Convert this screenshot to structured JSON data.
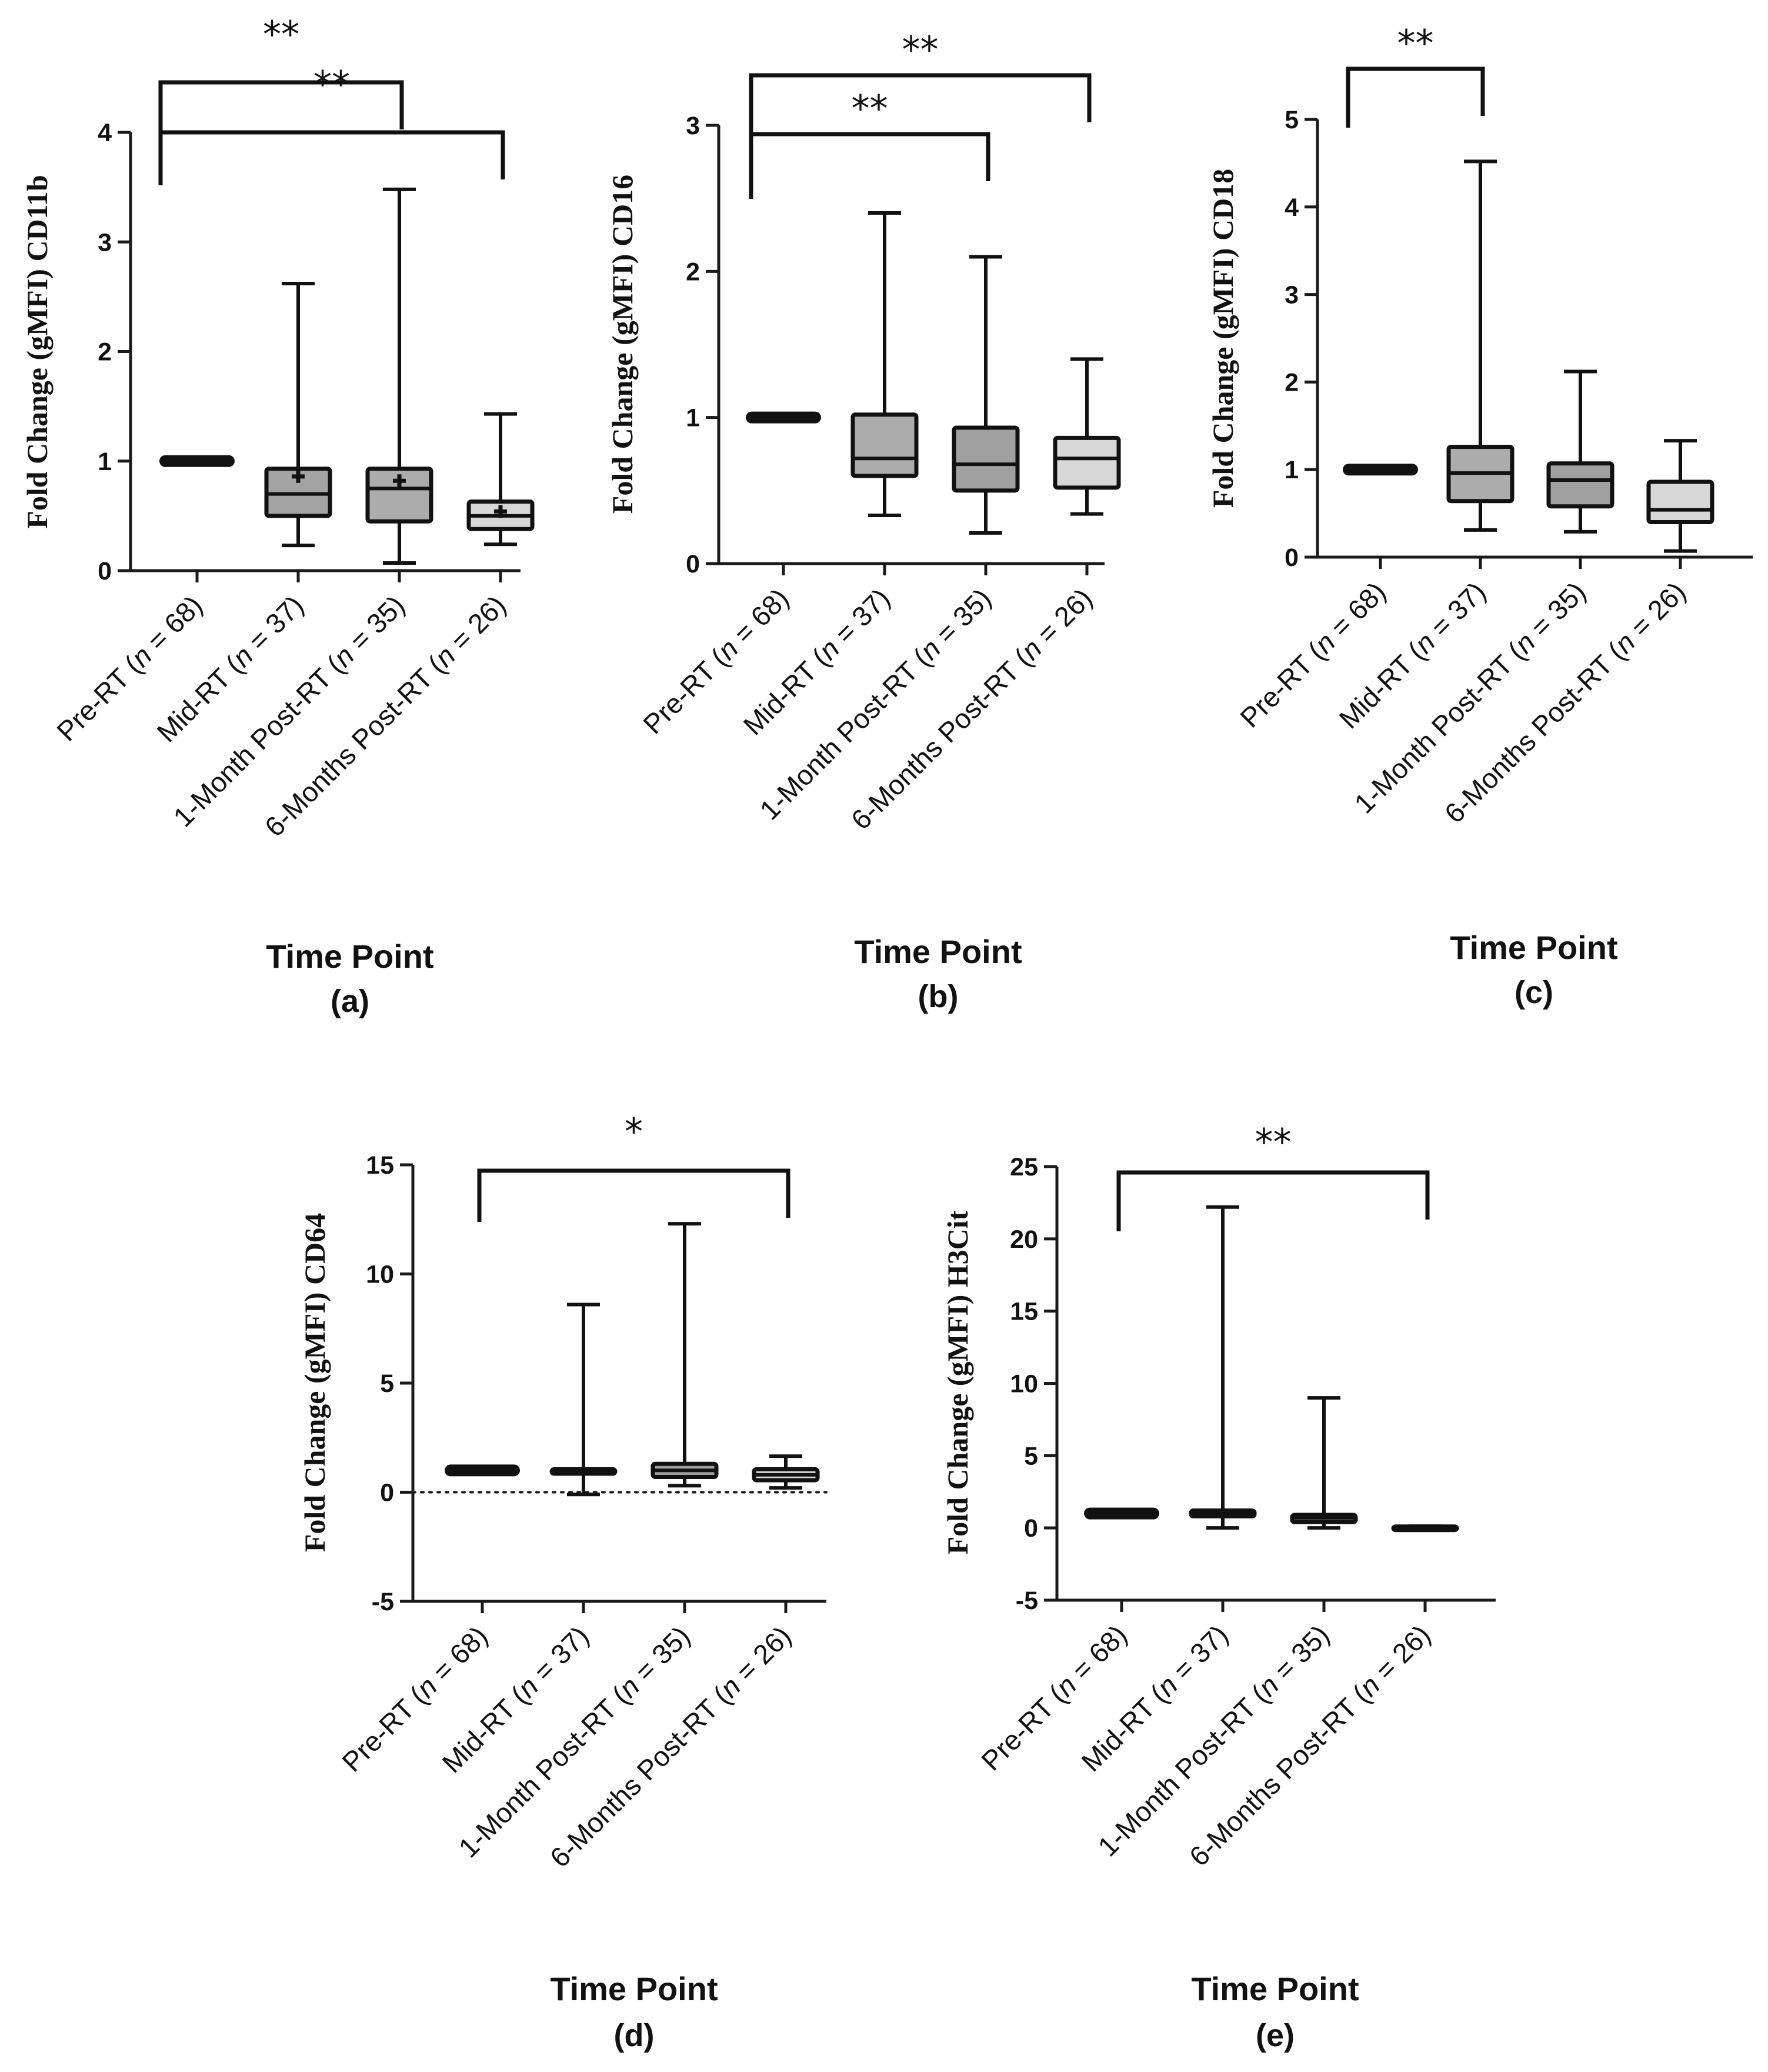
{
  "chart_data": [
    {
      "panel": "(a)",
      "type": "box",
      "ylabel": "Fold Change (gMFI) CD11b",
      "xlabel": "Time Point",
      "ylim": [
        0,
        4
      ],
      "yticks": [
        0,
        1,
        2,
        3,
        4
      ],
      "categories": [
        "Pre-RT (n = 68)",
        "Mid-RT (n = 37)",
        "1-Month Post-RT (n = 35)",
        "6-Months Post-RT (n = 26)"
      ],
      "series": [
        {
          "name": "Pre-RT",
          "min": 1.0,
          "q1": 1.0,
          "median": 1.0,
          "q3": 1.0,
          "max": 1.0,
          "mean": null,
          "fill": "#9a9a9a"
        },
        {
          "name": "Mid-RT",
          "min": 0.23,
          "q1": 0.5,
          "median": 0.7,
          "q3": 0.93,
          "max": 2.62,
          "mean": 0.86,
          "fill": "#a4a4a4"
        },
        {
          "name": "1-Month Post-RT",
          "min": 0.07,
          "q1": 0.45,
          "median": 0.75,
          "q3": 0.93,
          "max": 3.48,
          "mean": 0.82,
          "fill": "#acacac"
        },
        {
          "name": "6-Months Post-RT",
          "min": 0.24,
          "q1": 0.38,
          "median": 0.5,
          "q3": 0.63,
          "max": 1.43,
          "mean": 0.54,
          "fill": "#d7d7d7"
        }
      ],
      "significance": [
        {
          "from": 0,
          "to": 2,
          "label": "**",
          "level": 0
        },
        {
          "from": 0,
          "to": 3,
          "label": "**",
          "level": 1
        }
      ],
      "ref_line": null
    },
    {
      "panel": "(b)",
      "type": "box",
      "ylabel": "Fold Change (gMFI) CD16",
      "xlabel": "Time Point",
      "ylim": [
        0,
        3
      ],
      "yticks": [
        0,
        1,
        2,
        3
      ],
      "categories": [
        "Pre-RT (n = 68)",
        "Mid-RT (n = 37)",
        "1-Month Post-RT (n = 35)",
        "6-Months Post-RT (n = 26)"
      ],
      "series": [
        {
          "name": "Pre-RT",
          "min": 1.0,
          "q1": 1.0,
          "median": 1.0,
          "q3": 1.0,
          "max": 1.0,
          "mean": null,
          "fill": "#9a9a9a"
        },
        {
          "name": "Mid-RT",
          "min": 0.33,
          "q1": 0.6,
          "median": 0.72,
          "q3": 1.02,
          "max": 2.4,
          "mean": null,
          "fill": "#acacac"
        },
        {
          "name": "1-Month Post-RT",
          "min": 0.21,
          "q1": 0.5,
          "median": 0.68,
          "q3": 0.93,
          "max": 2.1,
          "mean": null,
          "fill": "#a0a0a0"
        },
        {
          "name": "6-Months Post-RT",
          "min": 0.34,
          "q1": 0.52,
          "median": 0.72,
          "q3": 0.86,
          "max": 1.4,
          "mean": null,
          "fill": "#d7d7d7"
        }
      ],
      "significance": [
        {
          "from": 0,
          "to": 2,
          "label": "**",
          "level": 0
        },
        {
          "from": 0,
          "to": 3,
          "label": "**",
          "level": 1
        }
      ],
      "ref_line": null
    },
    {
      "panel": "(c)",
      "type": "box",
      "ylabel": "Fold Change (gMFI) CD18",
      "xlabel": "Time Point",
      "ylim": [
        0,
        5
      ],
      "yticks": [
        0,
        1,
        2,
        3,
        4,
        5
      ],
      "categories": [
        "Pre-RT (n = 68)",
        "Mid-RT (n = 37)",
        "1-Month Post-RT (n = 35)",
        "6-Months Post-RT (n = 26)"
      ],
      "series": [
        {
          "name": "Pre-RT",
          "min": 1.0,
          "q1": 1.0,
          "median": 1.0,
          "q3": 1.0,
          "max": 1.0,
          "mean": null,
          "fill": "#9a9a9a"
        },
        {
          "name": "Mid-RT",
          "min": 0.31,
          "q1": 0.64,
          "median": 0.96,
          "q3": 1.26,
          "max": 4.52,
          "mean": null,
          "fill": "#acacac"
        },
        {
          "name": "1-Month Post-RT",
          "min": 0.29,
          "q1": 0.58,
          "median": 0.88,
          "q3": 1.07,
          "max": 2.12,
          "mean": null,
          "fill": "#a0a0a0"
        },
        {
          "name": "6-Months Post-RT",
          "min": 0.07,
          "q1": 0.4,
          "median": 0.54,
          "q3": 0.86,
          "max": 1.33,
          "mean": null,
          "fill": "#d7d7d7"
        }
      ],
      "significance": [
        {
          "from": 0,
          "to": 1,
          "label": "**",
          "level": 0
        }
      ],
      "ref_line": null
    },
    {
      "panel": "(d)",
      "type": "box",
      "ylabel": "Fold Change (gMFI) CD64",
      "xlabel": "Time Point",
      "ylim": [
        -5,
        15
      ],
      "yticks": [
        -5,
        0,
        5,
        10,
        15
      ],
      "categories": [
        "Pre-RT (n = 68)",
        "Mid-RT (n = 37)",
        "1-Month Post-RT (n = 35)",
        "6-Months Post-RT (n = 26)"
      ],
      "series": [
        {
          "name": "Pre-RT",
          "min": 1.0,
          "q1": 1.0,
          "median": 1.0,
          "q3": 1.0,
          "max": 1.0,
          "mean": null,
          "fill": "#9a9a9a"
        },
        {
          "name": "Mid-RT",
          "min": -0.1,
          "q1": 0.85,
          "median": 0.95,
          "q3": 1.05,
          "max": 8.6,
          "mean": null,
          "fill": "#acacac"
        },
        {
          "name": "1-Month Post-RT",
          "min": 0.3,
          "q1": 0.7,
          "median": 1.0,
          "q3": 1.3,
          "max": 12.3,
          "mean": null,
          "fill": "#a0a0a0"
        },
        {
          "name": "6-Months Post-RT",
          "min": 0.2,
          "q1": 0.55,
          "median": 0.8,
          "q3": 1.05,
          "max": 1.65,
          "mean": null,
          "fill": "#d7d7d7"
        }
      ],
      "significance": [
        {
          "from": 0,
          "to": 3,
          "label": "*",
          "level": 0
        }
      ],
      "ref_line": 0
    },
    {
      "panel": "(e)",
      "type": "box",
      "ylabel": "Fold Change (gMFI) H3Cit",
      "xlabel": "Time Point",
      "ylim": [
        -5,
        25
      ],
      "yticks": [
        -5,
        0,
        5,
        10,
        15,
        20,
        25
      ],
      "categories": [
        "Pre-RT (n = 68)",
        "Mid-RT (n = 37)",
        "1-Month Post-RT (n = 35)",
        "6-Months Post-RT (n = 26)"
      ],
      "series": [
        {
          "name": "Pre-RT",
          "min": 1.0,
          "q1": 1.0,
          "median": 1.0,
          "q3": 1.0,
          "max": 1.0,
          "mean": null,
          "fill": "#9a9a9a"
        },
        {
          "name": "Mid-RT",
          "min": 0.0,
          "q1": 0.8,
          "median": 0.95,
          "q3": 1.2,
          "max": 22.2,
          "mean": null,
          "fill": "#acacac"
        },
        {
          "name": "1-Month Post-RT",
          "min": 0.0,
          "q1": 0.4,
          "median": 0.7,
          "q3": 0.9,
          "max": 9.0,
          "mean": null,
          "fill": "#a0a0a0"
        },
        {
          "name": "6-Months Post-RT",
          "min": -0.1,
          "q1": -0.05,
          "median": 0.0,
          "q3": 0.1,
          "max": 0.12,
          "mean": null,
          "fill": "#d7d7d7"
        }
      ],
      "significance": [
        {
          "from": 0,
          "to": 3,
          "label": "**",
          "level": 0
        }
      ],
      "ref_line": null
    }
  ]
}
